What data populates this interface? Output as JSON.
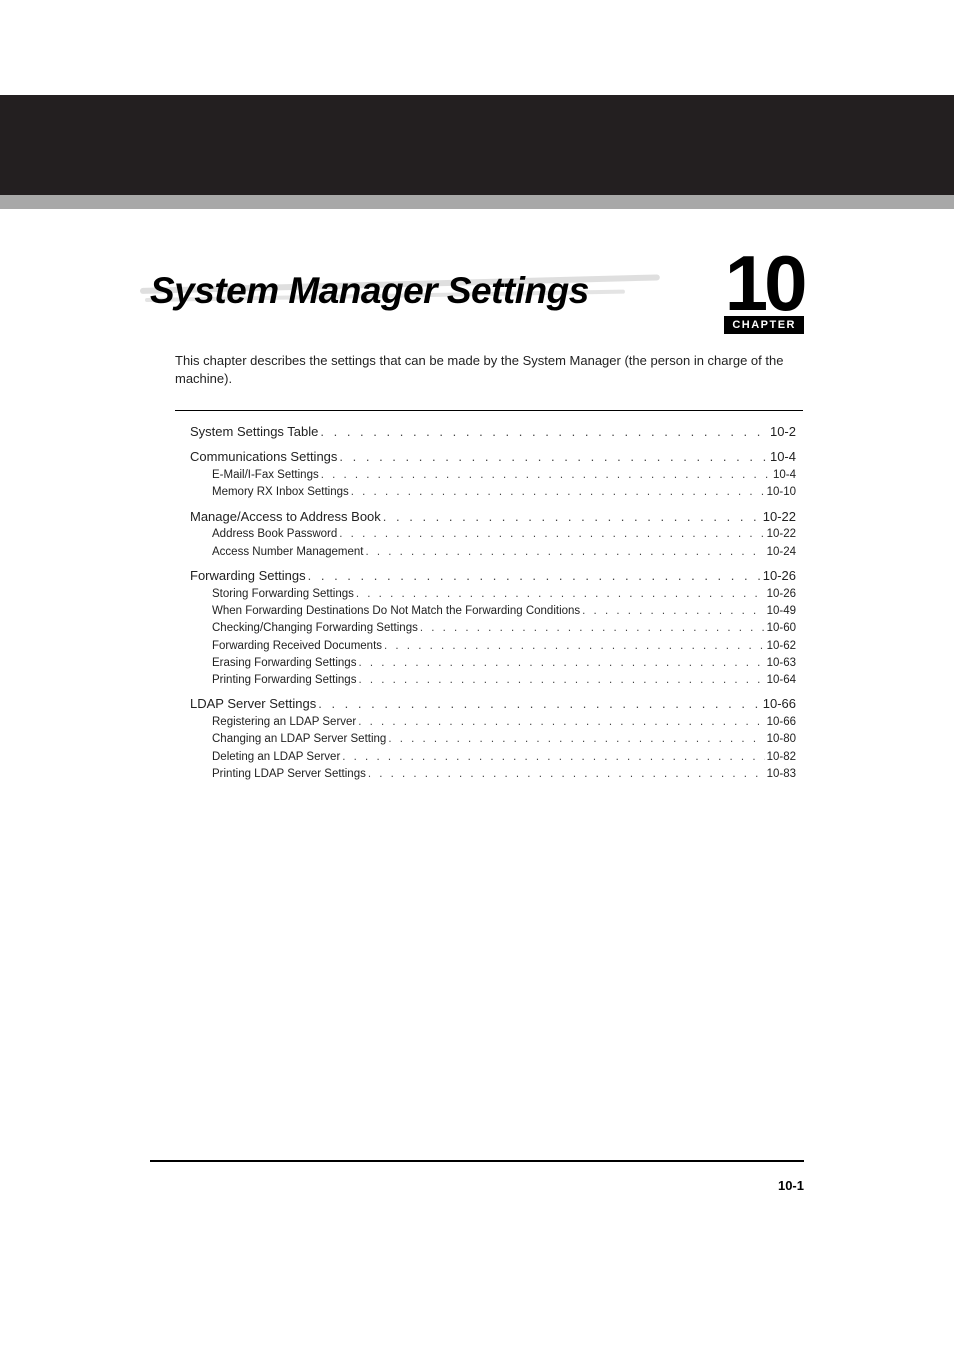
{
  "colors": {
    "band_dark": "#231f20",
    "band_gray": "#a8a8a8",
    "text": "#222222",
    "background": "#ffffff"
  },
  "header": {
    "title": "System Manager Settings",
    "chapter_number": "10",
    "chapter_label": "CHAPTER"
  },
  "intro": "This chapter describes the settings that can be made by the System Manager (the person in charge of the machine).",
  "toc": [
    {
      "label": "System Settings Table",
      "page": "10-2",
      "children": []
    },
    {
      "label": "Communications Settings",
      "page": "10-4",
      "children": [
        {
          "label": "E-Mail/I-Fax Settings",
          "page": "10-4"
        },
        {
          "label": "Memory RX Inbox Settings",
          "page": "10-10"
        }
      ]
    },
    {
      "label": "Manage/Access to Address Book",
      "page": "10-22",
      "children": [
        {
          "label": "Address Book Password",
          "page": "10-22"
        },
        {
          "label": "Access Number Management",
          "page": "10-24"
        }
      ]
    },
    {
      "label": "Forwarding Settings",
      "page": "10-26",
      "children": [
        {
          "label": "Storing Forwarding Settings",
          "page": "10-26"
        },
        {
          "label": "When Forwarding Destinations Do Not Match the Forwarding Conditions",
          "page": "10-49"
        },
        {
          "label": "Checking/Changing Forwarding Settings",
          "page": "10-60"
        },
        {
          "label": "Forwarding Received Documents",
          "page": "10-62"
        },
        {
          "label": "Erasing Forwarding Settings",
          "page": "10-63"
        },
        {
          "label": "Printing Forwarding Settings",
          "page": "10-64"
        }
      ]
    },
    {
      "label": "LDAP Server Settings",
      "page": "10-66",
      "children": [
        {
          "label": "Registering an LDAP Server",
          "page": "10-66"
        },
        {
          "label": "Changing an LDAP Server Setting",
          "page": "10-80"
        },
        {
          "label": "Deleting an LDAP Server",
          "page": "10-82"
        },
        {
          "label": "Printing LDAP Server Settings",
          "page": "10-83"
        }
      ]
    }
  ],
  "footer": {
    "page_number": "10-1"
  },
  "typography": {
    "title_fontsize_pt": 28,
    "chapter_number_fontsize_pt": 58,
    "chapter_label_fontsize_pt": 8,
    "body_fontsize_pt": 10,
    "toc_main_fontsize_pt": 10,
    "toc_sub_fontsize_pt": 9,
    "page_number_fontsize_pt": 10
  }
}
